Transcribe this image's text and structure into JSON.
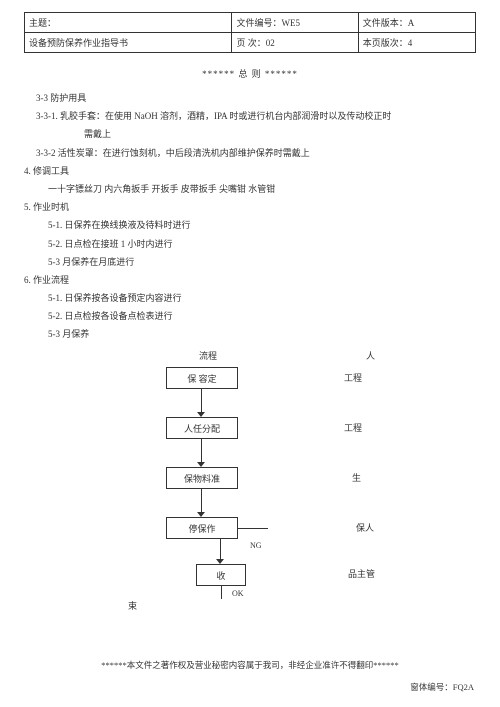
{
  "header": {
    "row1": {
      "c1": "主题：",
      "c2": "文件编号：WE5",
      "c3": "文件版本：A"
    },
    "row2": {
      "c1": "设备预防保养作业指导书",
      "c2": "页  次：02",
      "c3": "本页版次：4"
    }
  },
  "title": "******  总  则  ******",
  "lines": {
    "l1": "3-3 防护用具",
    "l2": "3-3-1. 乳胶手套：在使用 NaOH 溶剂，酒精，IPA 时或进行机台内部润滑时以及传动校正时",
    "l2b": "需戴上",
    "l3": "3-3-2 活性炭罩：在进行蚀刻机，中后段清洗机内部维护保养时需戴上",
    "l4": "4.   修调工具",
    "l5": "一十字镖丝刀  内六角扳手  开扳手  皮带扳手  尖嘴钳  水管钳",
    "l6": "5.   作业时机",
    "l7": "5-1. 日保养在换线换液及待料时进行",
    "l8": "5-2. 日点检在接班 1 小时内进行",
    "l9": "5-3 月保养在月底进行",
    "l10": "6.   作业流程",
    "l11": "5-1. 日保养按各设备预定内容进行",
    "l12": "5-2. 日点检按各设备点检表进行",
    "l13": "5-3 月保养"
  },
  "flow": {
    "hdr_left": "流程",
    "hdr_right": "人",
    "b1": "保   容定",
    "p1": "工程",
    "b2": "人任分配",
    "p2": "工程",
    "b3": "保物料准",
    "p3": "生",
    "b4": "停保作",
    "p4": "保人",
    "b5": "收",
    "p5": "品主管",
    "ng": "NG",
    "ok": "OK",
    "end": "束"
  },
  "footer": "******本文件之著作权及营业秘密内容属于我司，非经企业准许不得翻印******",
  "form_no": "窗体编号：FQ2A"
}
